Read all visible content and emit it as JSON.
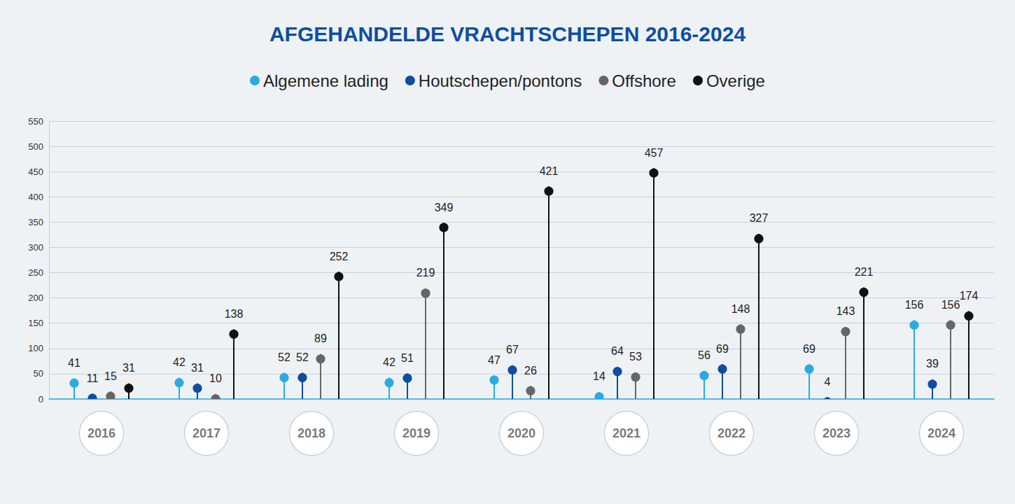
{
  "chart_data": {
    "type": "lollipop",
    "title": "AFGEHANDELDE VRACHTSCHEPEN 2016-2024",
    "categories": [
      "2016",
      "2017",
      "2018",
      "2019",
      "2020",
      "2021",
      "2022",
      "2023",
      "2024"
    ],
    "series": [
      {
        "name": "Algemene lading",
        "color": "#29abe2",
        "values": [
          41,
          42,
          52,
          42,
          47,
          14,
          56,
          69,
          156
        ]
      },
      {
        "name": "Houtschepen/pontons",
        "color": "#0d4ea0",
        "values": [
          11,
          31,
          52,
          51,
          67,
          64,
          69,
          4,
          39
        ]
      },
      {
        "name": "Offshore",
        "color": "#666666",
        "values": [
          15,
          10,
          89,
          219,
          26,
          53,
          148,
          143,
          156
        ]
      },
      {
        "name": "Overige",
        "color": "#111111",
        "values": [
          31,
          138,
          252,
          349,
          421,
          457,
          327,
          221,
          174
        ]
      }
    ],
    "ylim": [
      0,
      550
    ],
    "yticks": [
      0,
      50,
      100,
      150,
      200,
      250,
      300,
      350,
      400,
      450,
      500,
      550
    ],
    "grid": true,
    "legend": "top",
    "data_labels": true,
    "marker": "circle"
  }
}
